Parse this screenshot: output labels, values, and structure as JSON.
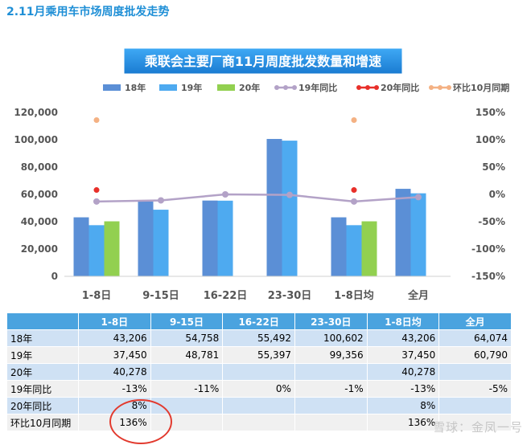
{
  "section_heading": "2.11月乘用车市场周度批发走势",
  "watermark": "雪球：金凤一号",
  "chart_data": {
    "type": "bar",
    "title": "乘联会主要厂商11月周度批发数量和增速",
    "categories": [
      "1-8日",
      "9-15日",
      "16-22日",
      "23-30日",
      "1-8日均",
      "全月"
    ],
    "series": [
      {
        "name": "18年",
        "kind": "bar",
        "axis": "left",
        "color": "#5b8fd6",
        "values": [
          43206,
          54758,
          55492,
          100602,
          43206,
          64074
        ]
      },
      {
        "name": "19年",
        "kind": "bar",
        "axis": "left",
        "color": "#4eaaf0",
        "values": [
          37450,
          48781,
          55397,
          99356,
          37450,
          60790
        ]
      },
      {
        "name": "20年",
        "kind": "bar",
        "axis": "left",
        "color": "#92d050",
        "values": [
          40278,
          null,
          null,
          null,
          40278,
          null
        ]
      },
      {
        "name": "19年同比",
        "kind": "line",
        "axis": "right",
        "color": "#b3a2c7",
        "values": [
          -13,
          -11,
          0,
          -1,
          -13,
          -5
        ]
      },
      {
        "name": "20年同比",
        "kind": "point",
        "axis": "right",
        "color": "#e8302a",
        "values": [
          8,
          null,
          null,
          null,
          8,
          null
        ]
      },
      {
        "name": "环比10月同期",
        "kind": "point",
        "axis": "right",
        "color": "#f4b183",
        "values": [
          136,
          null,
          null,
          null,
          136,
          null
        ]
      }
    ],
    "y_left": {
      "min": 0,
      "max": 120000,
      "ticks": [
        "0",
        "20,000",
        "40,000",
        "60,000",
        "80,000",
        "100,000",
        "120,000"
      ]
    },
    "y_right": {
      "min": -150,
      "max": 150,
      "ticks": [
        "-150%",
        "-100%",
        "-50%",
        "0%",
        "50%",
        "100%",
        "150%"
      ]
    },
    "grid": false,
    "legend_position": "top"
  },
  "table": {
    "headers": [
      "",
      "1-8日",
      "9-15日",
      "16-22日",
      "23-30日",
      "1-8日均",
      "全月"
    ],
    "rows": [
      {
        "label": "18年",
        "cells": [
          "43,206",
          "54,758",
          "55,492",
          "100,602",
          "43,206",
          "64,074"
        ]
      },
      {
        "label": "19年",
        "cells": [
          "37,450",
          "48,781",
          "55,397",
          "99,356",
          "37,450",
          "60,790"
        ]
      },
      {
        "label": "20年",
        "cells": [
          "40,278",
          "",
          "",
          "",
          "40,278",
          ""
        ]
      },
      {
        "label": "19年同比",
        "cells": [
          "-13%",
          "-11%",
          "0%",
          "-1%",
          "-13%",
          "-5%"
        ]
      },
      {
        "label": "20年同比",
        "cells": [
          "8%",
          "",
          "",
          "",
          "8%",
          ""
        ]
      },
      {
        "label": "环比10月同期",
        "cells": [
          "136%",
          "",
          "",
          "",
          "136%",
          ""
        ]
      }
    ]
  }
}
